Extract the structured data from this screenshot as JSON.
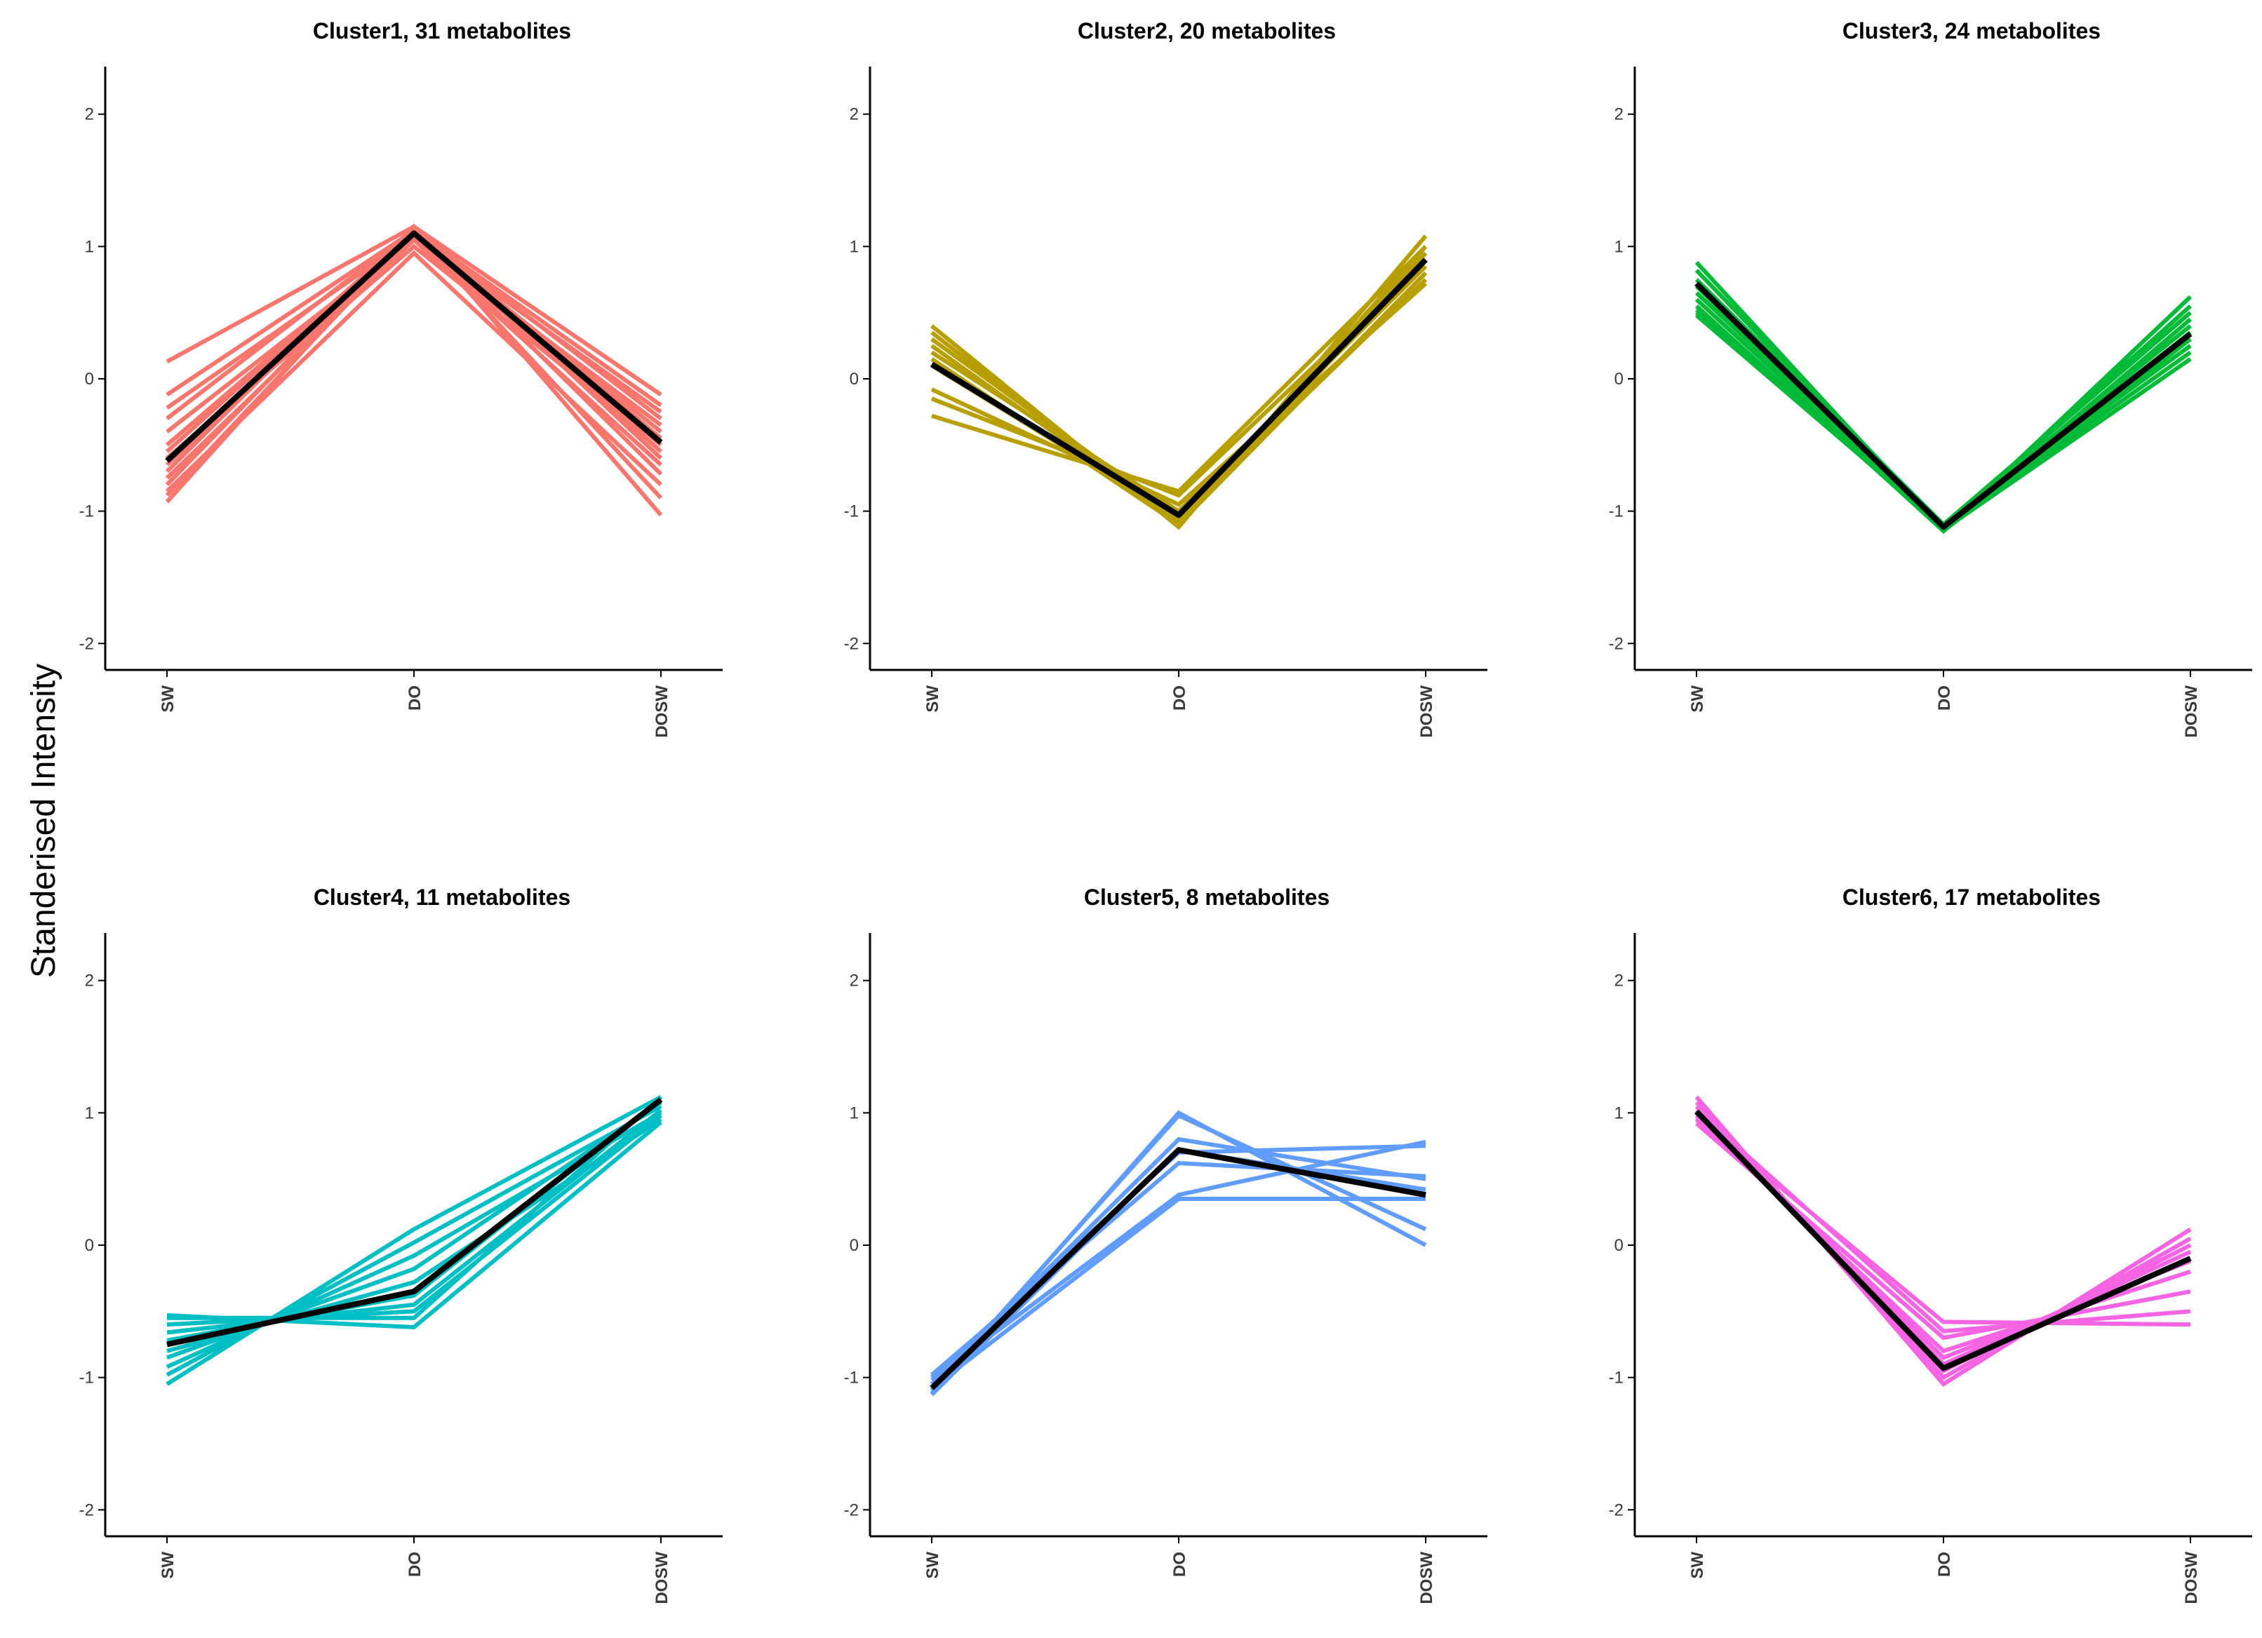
{
  "figure": {
    "ylabel": "Standerised Intensity",
    "centroid_color": "#000000"
  },
  "chart_data": [
    {
      "type": "line",
      "title": "Cluster1, 31 metabolites",
      "color": "#f8766d",
      "categories": [
        "SW",
        "DO",
        "DOSW"
      ],
      "y_ticks": [
        "2",
        "1",
        "0",
        "-1",
        "-2"
      ],
      "ylim": [
        -2.2,
        2.2
      ],
      "centroid": [
        -0.62,
        1.1,
        -0.48
      ],
      "series": [
        {
          "values": [
            0.13,
            1.15,
            -0.12
          ]
        },
        {
          "values": [
            -0.12,
            1.12,
            -0.2
          ]
        },
        {
          "values": [
            -0.22,
            1.08,
            -0.25
          ]
        },
        {
          "values": [
            -0.3,
            1.13,
            -0.3
          ]
        },
        {
          "values": [
            -0.4,
            1.05,
            -0.35
          ]
        },
        {
          "values": [
            -0.5,
            1.1,
            -0.4
          ]
        },
        {
          "values": [
            -0.55,
            1.12,
            -0.45
          ]
        },
        {
          "values": [
            -0.6,
            1.0,
            -0.5
          ]
        },
        {
          "values": [
            -0.65,
            1.1,
            -0.55
          ]
        },
        {
          "values": [
            -0.7,
            1.15,
            -0.6
          ]
        },
        {
          "values": [
            -0.75,
            1.05,
            -0.65
          ]
        },
        {
          "values": [
            -0.8,
            1.12,
            -0.72
          ]
        },
        {
          "values": [
            -0.85,
            0.95,
            -0.8
          ]
        },
        {
          "values": [
            -0.88,
            1.1,
            -0.9
          ]
        },
        {
          "values": [
            -0.93,
            1.14,
            -1.03
          ]
        }
      ]
    },
    {
      "type": "line",
      "title": "Cluster2, 20 metabolites",
      "color": "#b79f00",
      "categories": [
        "SW",
        "DO",
        "DOSW"
      ],
      "y_ticks": [
        "2",
        "1",
        "0",
        "-1",
        "-2"
      ],
      "ylim": [
        -2.2,
        2.2
      ],
      "centroid": [
        0.11,
        -1.03,
        0.9
      ],
      "series": [
        {
          "values": [
            0.4,
            -1.12,
            1.08
          ]
        },
        {
          "values": [
            0.35,
            -1.1,
            1.0
          ]
        },
        {
          "values": [
            0.3,
            -1.05,
            0.95
          ]
        },
        {
          "values": [
            0.25,
            -1.08,
            0.9
          ]
        },
        {
          "values": [
            0.2,
            -1.0,
            0.85
          ]
        },
        {
          "values": [
            0.15,
            -1.1,
            0.8
          ]
        },
        {
          "values": [
            0.1,
            -1.05,
            0.75
          ]
        },
        {
          "values": [
            -0.08,
            -0.95,
            0.72
          ]
        },
        {
          "values": [
            -0.15,
            -0.88,
            0.9
          ]
        },
        {
          "values": [
            -0.28,
            -0.85,
            1.0
          ]
        }
      ]
    },
    {
      "type": "line",
      "title": "Cluster3, 24 metabolites",
      "color": "#00ba38",
      "categories": [
        "SW",
        "DO",
        "DOSW"
      ],
      "y_ticks": [
        "2",
        "1",
        "0",
        "-1",
        "-2"
      ],
      "ylim": [
        -2.2,
        2.2
      ],
      "centroid": [
        0.72,
        -1.12,
        0.34
      ],
      "series": [
        {
          "values": [
            0.88,
            -1.15,
            0.62
          ]
        },
        {
          "values": [
            0.82,
            -1.12,
            0.55
          ]
        },
        {
          "values": [
            0.75,
            -1.1,
            0.5
          ]
        },
        {
          "values": [
            0.7,
            -1.14,
            0.45
          ]
        },
        {
          "values": [
            0.65,
            -1.1,
            0.4
          ]
        },
        {
          "values": [
            0.6,
            -1.12,
            0.35
          ]
        },
        {
          "values": [
            0.55,
            -1.15,
            0.3
          ]
        },
        {
          "values": [
            0.5,
            -1.1,
            0.25
          ]
        },
        {
          "values": [
            0.48,
            -1.12,
            0.2
          ]
        },
        {
          "values": [
            0.52,
            -1.14,
            0.15
          ]
        }
      ]
    },
    {
      "type": "line",
      "title": "Cluster4, 11 metabolites",
      "color": "#00bfc4",
      "categories": [
        "SW",
        "DO",
        "DOSW"
      ],
      "y_ticks": [
        "2",
        "1",
        "0",
        "-1",
        "-2"
      ],
      "ylim": [
        -2.2,
        2.2
      ],
      "centroid": [
        -0.75,
        -0.35,
        1.1
      ],
      "series": [
        {
          "values": [
            -1.05,
            0.12,
            1.12
          ]
        },
        {
          "values": [
            -0.98,
            0.02,
            1.05
          ]
        },
        {
          "values": [
            -0.92,
            -0.08,
            1.0
          ]
        },
        {
          "values": [
            -0.85,
            -0.18,
            1.08
          ]
        },
        {
          "values": [
            -0.8,
            -0.28,
            0.95
          ]
        },
        {
          "values": [
            -0.72,
            -0.38,
            1.1
          ]
        },
        {
          "values": [
            -0.66,
            -0.45,
            1.02
          ]
        },
        {
          "values": [
            -0.6,
            -0.5,
            0.98
          ]
        },
        {
          "values": [
            -0.55,
            -0.55,
            1.12
          ]
        },
        {
          "values": [
            -0.53,
            -0.62,
            0.93
          ]
        }
      ]
    },
    {
      "type": "line",
      "title": "Cluster5, 8 metabolites",
      "color": "#619cff",
      "categories": [
        "SW",
        "DO",
        "DOSW"
      ],
      "y_ticks": [
        "2",
        "1",
        "0",
        "-1",
        "-2"
      ],
      "ylim": [
        -2.2,
        2.2
      ],
      "centroid": [
        -1.08,
        0.72,
        0.38
      ],
      "series": [
        {
          "values": [
            -1.12,
            1.0,
            0.0
          ]
        },
        {
          "values": [
            -1.1,
            0.98,
            0.12
          ]
        },
        {
          "values": [
            -1.05,
            0.8,
            0.5
          ]
        },
        {
          "values": [
            -1.0,
            0.7,
            0.75
          ]
        },
        {
          "values": [
            -0.98,
            0.62,
            0.52
          ]
        },
        {
          "values": [
            -1.02,
            0.38,
            0.78
          ]
        },
        {
          "values": [
            -1.13,
            0.72,
            0.42
          ]
        },
        {
          "values": [
            -1.08,
            0.35,
            0.35
          ]
        }
      ]
    },
    {
      "type": "line",
      "title": "Cluster6, 17 metabolites",
      "color": "#f564e3",
      "categories": [
        "SW",
        "DO",
        "DOSW"
      ],
      "y_ticks": [
        "2",
        "1",
        "0",
        "-1",
        "-2"
      ],
      "ylim": [
        -2.2,
        2.2
      ],
      "centroid": [
        1.01,
        -0.93,
        -0.1
      ],
      "series": [
        {
          "values": [
            1.12,
            -1.05,
            0.12
          ]
        },
        {
          "values": [
            1.08,
            -1.0,
            0.05
          ]
        },
        {
          "values": [
            1.05,
            -0.95,
            0.0
          ]
        },
        {
          "values": [
            1.0,
            -0.9,
            -0.05
          ]
        },
        {
          "values": [
            0.98,
            -0.85,
            -0.12
          ]
        },
        {
          "values": [
            0.95,
            -0.8,
            -0.2
          ]
        },
        {
          "values": [
            0.92,
            -0.7,
            -0.35
          ]
        },
        {
          "values": [
            1.02,
            -0.65,
            -0.5
          ]
        },
        {
          "values": [
            0.96,
            -0.58,
            -0.6
          ]
        }
      ]
    }
  ]
}
